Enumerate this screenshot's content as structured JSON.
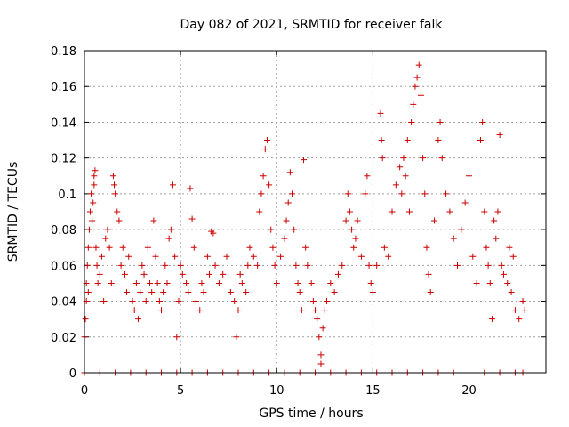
{
  "chart_data": {
    "type": "scatter",
    "title": "Day 082 of 2021, SRMTID for receiver falk",
    "xlabel": "GPS time / hours",
    "ylabel": "SRMTID / TECUs",
    "xlim": [
      0,
      24
    ],
    "ylim": [
      0,
      0.18
    ],
    "xticks": [
      0,
      5,
      10,
      15,
      20
    ],
    "xtick_labels": [
      "0",
      "5",
      "10",
      "15",
      "20"
    ],
    "yticks": [
      0,
      0.02,
      0.04,
      0.06,
      0.08,
      0.1,
      0.12,
      0.14,
      0.16,
      0.18
    ],
    "ytick_labels": [
      "0",
      "0.02",
      "0.04",
      "0.06",
      "0.08",
      "0.1",
      "0.12",
      "0.14",
      "0.16",
      "0.18"
    ],
    "grid": true,
    "marker": "plus",
    "color": "#cc0000",
    "series": [
      {
        "name": "SRMTID",
        "points": [
          [
            0.0,
            0.02
          ],
          [
            0.05,
            0.03
          ],
          [
            0.1,
            0.04
          ],
          [
            0.1,
            0.05
          ],
          [
            0.15,
            0.06
          ],
          [
            0.2,
            0.045
          ],
          [
            0.2,
            0.07
          ],
          [
            0.25,
            0.08
          ],
          [
            0.3,
            0.09
          ],
          [
            0.35,
            0.1
          ],
          [
            0.4,
            0.085
          ],
          [
            0.45,
            0.095
          ],
          [
            0.5,
            0.11
          ],
          [
            0.5,
            0.105
          ],
          [
            0.55,
            0.113
          ],
          [
            0.6,
            0.07
          ],
          [
            0.65,
            0.06
          ],
          [
            0.7,
            0.05
          ],
          [
            0.8,
            0.055
          ],
          [
            0.9,
            0.065
          ],
          [
            1.0,
            0.04
          ],
          [
            1.1,
            0.075
          ],
          [
            1.2,
            0.08
          ],
          [
            1.3,
            0.07
          ],
          [
            1.4,
            0.05
          ],
          [
            1.5,
            0.11
          ],
          [
            1.55,
            0.105
          ],
          [
            1.6,
            0.1
          ],
          [
            1.7,
            0.09
          ],
          [
            1.8,
            0.085
          ],
          [
            1.9,
            0.06
          ],
          [
            2.0,
            0.07
          ],
          [
            2.1,
            0.055
          ],
          [
            2.2,
            0.045
          ],
          [
            2.3,
            0.065
          ],
          [
            2.5,
            0.04
          ],
          [
            2.6,
            0.035
          ],
          [
            2.7,
            0.05
          ],
          [
            2.8,
            0.03
          ],
          [
            2.9,
            0.045
          ],
          [
            3.0,
            0.06
          ],
          [
            3.1,
            0.055
          ],
          [
            3.2,
            0.04
          ],
          [
            3.3,
            0.07
          ],
          [
            3.4,
            0.05
          ],
          [
            3.5,
            0.045
          ],
          [
            3.6,
            0.085
          ],
          [
            3.7,
            0.065
          ],
          [
            3.8,
            0.05
          ],
          [
            3.9,
            0.04
          ],
          [
            4.0,
            0.035
          ],
          [
            4.1,
            0.045
          ],
          [
            4.2,
            0.06
          ],
          [
            4.3,
            0.05
          ],
          [
            4.4,
            0.075
          ],
          [
            4.5,
            0.08
          ],
          [
            4.6,
            0.105
          ],
          [
            4.7,
            0.065
          ],
          [
            4.8,
            0.02
          ],
          [
            4.9,
            0.04
          ],
          [
            5.0,
            0.06
          ],
          [
            5.1,
            0.055
          ],
          [
            5.3,
            0.05
          ],
          [
            5.4,
            0.045
          ],
          [
            5.5,
            0.103
          ],
          [
            5.6,
            0.086
          ],
          [
            5.7,
            0.07
          ],
          [
            5.8,
            0.04
          ],
          [
            6.0,
            0.035
          ],
          [
            6.1,
            0.05
          ],
          [
            6.2,
            0.045
          ],
          [
            6.4,
            0.065
          ],
          [
            6.5,
            0.055
          ],
          [
            6.6,
            0.079
          ],
          [
            6.7,
            0.078
          ],
          [
            6.8,
            0.06
          ],
          [
            7.0,
            0.05
          ],
          [
            7.2,
            0.055
          ],
          [
            7.4,
            0.065
          ],
          [
            7.6,
            0.045
          ],
          [
            7.8,
            0.04
          ],
          [
            7.9,
            0.02
          ],
          [
            8.0,
            0.035
          ],
          [
            8.1,
            0.055
          ],
          [
            8.2,
            0.05
          ],
          [
            8.4,
            0.045
          ],
          [
            8.5,
            0.06
          ],
          [
            8.6,
            0.07
          ],
          [
            8.8,
            0.065
          ],
          [
            9.0,
            0.06
          ],
          [
            9.1,
            0.09
          ],
          [
            9.2,
            0.1
          ],
          [
            9.3,
            0.11
          ],
          [
            9.4,
            0.125
          ],
          [
            9.5,
            0.13
          ],
          [
            9.6,
            0.105
          ],
          [
            9.7,
            0.08
          ],
          [
            9.8,
            0.07
          ],
          [
            9.9,
            0.06
          ],
          [
            10.0,
            0.05
          ],
          [
            10.2,
            0.065
          ],
          [
            10.4,
            0.075
          ],
          [
            10.5,
            0.085
          ],
          [
            10.6,
            0.095
          ],
          [
            10.7,
            0.112
          ],
          [
            10.8,
            0.1
          ],
          [
            10.9,
            0.08
          ],
          [
            11.0,
            0.06
          ],
          [
            11.1,
            0.05
          ],
          [
            11.2,
            0.045
          ],
          [
            11.3,
            0.035
          ],
          [
            11.4,
            0.119
          ],
          [
            11.5,
            0.07
          ],
          [
            11.6,
            0.06
          ],
          [
            11.8,
            0.05
          ],
          [
            11.9,
            0.04
          ],
          [
            12.0,
            0.035
          ],
          [
            12.1,
            0.03
          ],
          [
            12.2,
            0.02
          ],
          [
            12.3,
            0.01
          ],
          [
            12.3,
            0.005
          ],
          [
            12.4,
            0.025
          ],
          [
            12.5,
            0.035
          ],
          [
            12.6,
            0.04
          ],
          [
            12.8,
            0.05
          ],
          [
            13.0,
            0.045
          ],
          [
            13.2,
            0.055
          ],
          [
            13.4,
            0.06
          ],
          [
            13.6,
            0.085
          ],
          [
            13.7,
            0.1
          ],
          [
            13.8,
            0.09
          ],
          [
            13.9,
            0.08
          ],
          [
            14.0,
            0.07
          ],
          [
            14.1,
            0.075
          ],
          [
            14.2,
            0.085
          ],
          [
            14.4,
            0.065
          ],
          [
            14.6,
            0.1
          ],
          [
            14.7,
            0.11
          ],
          [
            14.8,
            0.06
          ],
          [
            14.9,
            0.05
          ],
          [
            15.0,
            0.045
          ],
          [
            15.2,
            0.06
          ],
          [
            15.4,
            0.145
          ],
          [
            15.45,
            0.13
          ],
          [
            15.5,
            0.12
          ],
          [
            15.6,
            0.07
          ],
          [
            15.8,
            0.065
          ],
          [
            16.0,
            0.09
          ],
          [
            16.2,
            0.105
          ],
          [
            16.4,
            0.115
          ],
          [
            16.5,
            0.1
          ],
          [
            16.6,
            0.12
          ],
          [
            16.7,
            0.11
          ],
          [
            16.8,
            0.13
          ],
          [
            16.9,
            0.09
          ],
          [
            17.0,
            0.14
          ],
          [
            17.1,
            0.15
          ],
          [
            17.2,
            0.16
          ],
          [
            17.3,
            0.165
          ],
          [
            17.4,
            0.172
          ],
          [
            17.5,
            0.155
          ],
          [
            17.6,
            0.12
          ],
          [
            17.7,
            0.1
          ],
          [
            17.8,
            0.07
          ],
          [
            17.9,
            0.055
          ],
          [
            18.0,
            0.045
          ],
          [
            18.2,
            0.085
          ],
          [
            18.4,
            0.13
          ],
          [
            18.5,
            0.14
          ],
          [
            18.6,
            0.12
          ],
          [
            18.8,
            0.1
          ],
          [
            19.0,
            0.09
          ],
          [
            19.2,
            0.075
          ],
          [
            19.4,
            0.06
          ],
          [
            19.6,
            0.08
          ],
          [
            19.8,
            0.095
          ],
          [
            20.0,
            0.11
          ],
          [
            20.2,
            0.065
          ],
          [
            20.4,
            0.05
          ],
          [
            20.6,
            0.13
          ],
          [
            20.7,
            0.14
          ],
          [
            20.8,
            0.09
          ],
          [
            20.9,
            0.07
          ],
          [
            21.0,
            0.06
          ],
          [
            21.1,
            0.05
          ],
          [
            21.2,
            0.03
          ],
          [
            21.3,
            0.085
          ],
          [
            21.5,
            0.09
          ],
          [
            21.6,
            0.133
          ],
          [
            21.7,
            0.06
          ],
          [
            21.8,
            0.055
          ],
          [
            22.0,
            0.05
          ],
          [
            22.2,
            0.045
          ],
          [
            22.4,
            0.035
          ],
          [
            22.6,
            0.03
          ],
          [
            22.8,
            0.04
          ],
          [
            22.9,
            0.035
          ],
          [
            22.1,
            0.07
          ],
          [
            22.3,
            0.065
          ],
          [
            21.4,
            0.075
          ],
          [
            0.0,
            0.0
          ],
          [
            0.8,
            0.0
          ],
          [
            1.6,
            0.0
          ],
          [
            2.4,
            0.0
          ],
          [
            3.2,
            0.0
          ],
          [
            4.0,
            0.0
          ],
          [
            4.8,
            0.0
          ],
          [
            5.6,
            0.0
          ],
          [
            6.4,
            0.0
          ],
          [
            7.2,
            0.0
          ],
          [
            8.0,
            0.0
          ],
          [
            8.8,
            0.0
          ],
          [
            9.6,
            0.0
          ],
          [
            10.4,
            0.0
          ],
          [
            11.2,
            0.0
          ],
          [
            12.0,
            0.0
          ],
          [
            12.8,
            0.0
          ],
          [
            13.6,
            0.0
          ],
          [
            14.4,
            0.0
          ],
          [
            15.2,
            0.0
          ],
          [
            16.0,
            0.0
          ],
          [
            16.8,
            0.0
          ],
          [
            17.6,
            0.0
          ],
          [
            18.4,
            0.0
          ],
          [
            19.2,
            0.0
          ],
          [
            20.0,
            0.0
          ],
          [
            20.8,
            0.0
          ],
          [
            21.6,
            0.0
          ],
          [
            22.4,
            0.0
          ],
          [
            22.8,
            0.0
          ]
        ]
      }
    ]
  }
}
